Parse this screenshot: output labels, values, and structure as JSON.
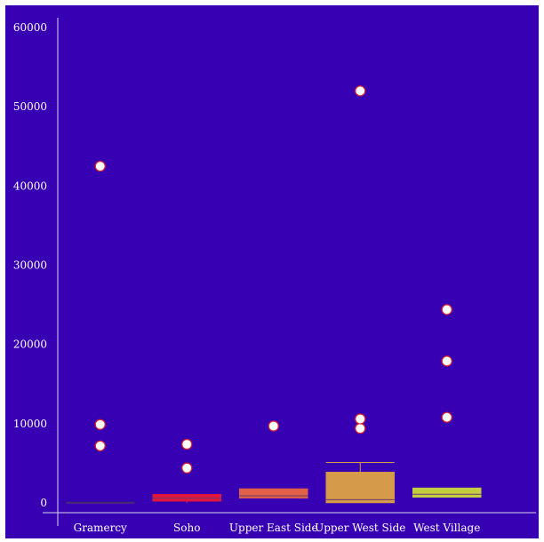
{
  "colors": {
    "background": "#3700b3",
    "axis": "#d9d4ee",
    "text": "#ffffff",
    "outlier_fill": "#ffffff",
    "outlier_stroke": "#e0202a"
  },
  "chart_data": {
    "type": "box",
    "title": "",
    "xlabel": "",
    "ylabel": "",
    "ylim": [
      0,
      60000
    ],
    "yticks": [
      0,
      10000,
      20000,
      30000,
      40000,
      50000,
      60000
    ],
    "ytick_labels": [
      "0",
      "10000",
      "20000",
      "30000",
      "40000",
      "50000",
      "60000"
    ],
    "grid": false,
    "legend": "none",
    "categories": [
      "Gramercy",
      "Soho",
      "Upper East Side",
      "Upper West Side",
      "West Village"
    ],
    "boxes": [
      {
        "category": "Gramercy",
        "color": "#2a1d7a",
        "min": 0,
        "q1": 0,
        "median": 0,
        "q3": 150,
        "max": 150,
        "outliers": [
          7200,
          9900,
          42500
        ]
      },
      {
        "category": "Soho",
        "color": "#e0163c",
        "min": 0,
        "q1": 200,
        "median": 600,
        "q3": 1100,
        "max": 1100,
        "outliers": [
          4400,
          7400
        ]
      },
      {
        "category": "Upper East Side",
        "color": "#e06048",
        "min": 600,
        "q1": 600,
        "median": 900,
        "q3": 1800,
        "max": 1800,
        "outliers": [
          9700
        ]
      },
      {
        "category": "Upper West Side",
        "color": "#d59a4a",
        "min": 0,
        "q1": 0,
        "median": 400,
        "q3": 3900,
        "max": 5100,
        "outliers": [
          9400,
          10600,
          52000
        ]
      },
      {
        "category": "West Village",
        "color": "#c4ce40",
        "min": 700,
        "q1": 700,
        "median": 1100,
        "q3": 1900,
        "max": 1900,
        "outliers": [
          10800,
          17900,
          24400
        ]
      }
    ]
  }
}
